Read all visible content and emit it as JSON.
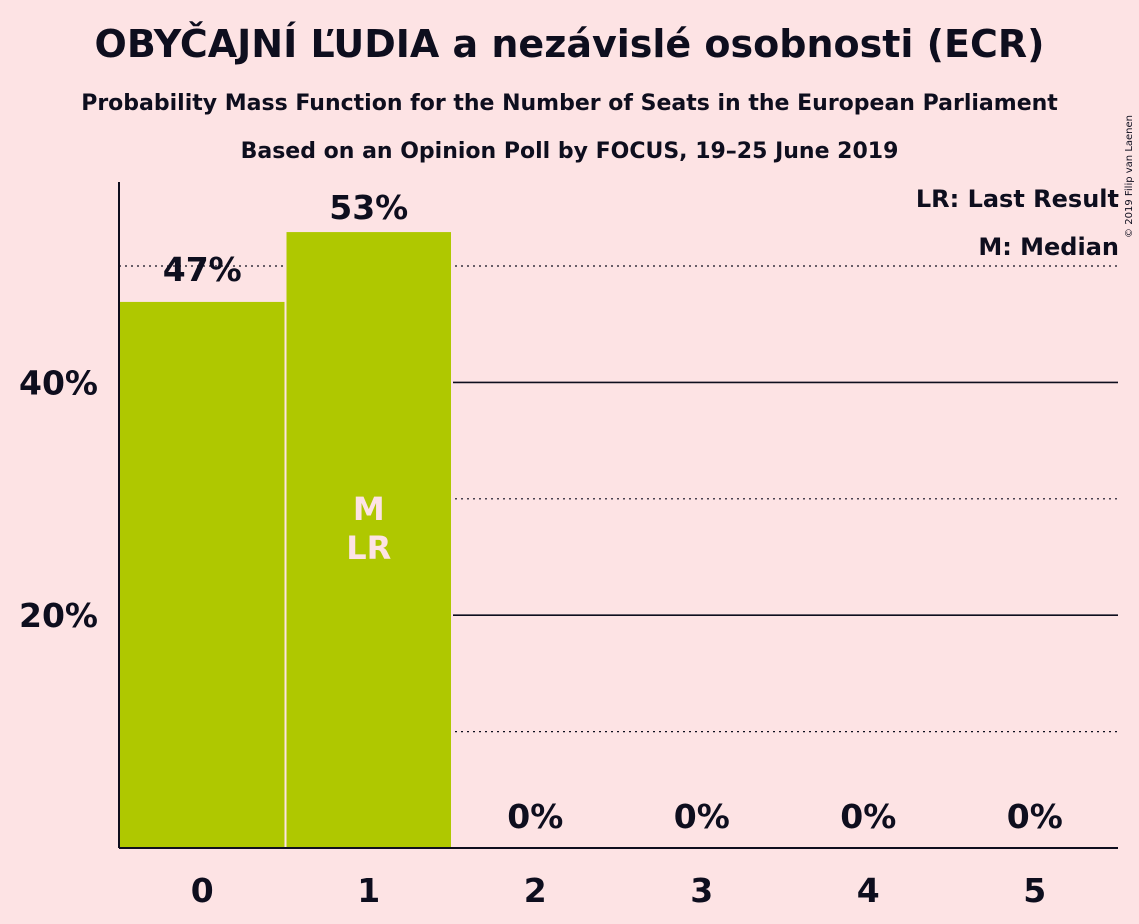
{
  "title": "OBYČAJNÍ ĽUDIA a nezávislé osobnosti (ECR)",
  "subtitle": "Probability Mass Function for the Number of Seats in the European Parliament",
  "subtitle2": "Based on an Opinion Poll by FOCUS, 19–25 June 2019",
  "copyright": "© 2019 Filip van Laenen",
  "legend": {
    "last_result": "LR: Last Result",
    "median": "M: Median"
  },
  "colors": {
    "background": "#fde3e4",
    "bar": "#afc800",
    "text": "#0e0e1e",
    "inner_label": "#fde3e4"
  },
  "chart_data": {
    "type": "bar",
    "categories": [
      "0",
      "1",
      "2",
      "3",
      "4",
      "5"
    ],
    "values": [
      47,
      53,
      0,
      0,
      0,
      0
    ],
    "value_labels": [
      "47%",
      "53%",
      "0%",
      "0%",
      "0%",
      "0%"
    ],
    "ylim": [
      0,
      55
    ],
    "yticks": [
      20,
      40
    ],
    "ytick_labels": [
      "20%",
      "40%"
    ],
    "minor_gridlines": [
      10,
      30,
      50
    ],
    "median_category": "1",
    "last_result_category": "1",
    "inner_labels": [
      "M",
      "LR"
    ]
  }
}
